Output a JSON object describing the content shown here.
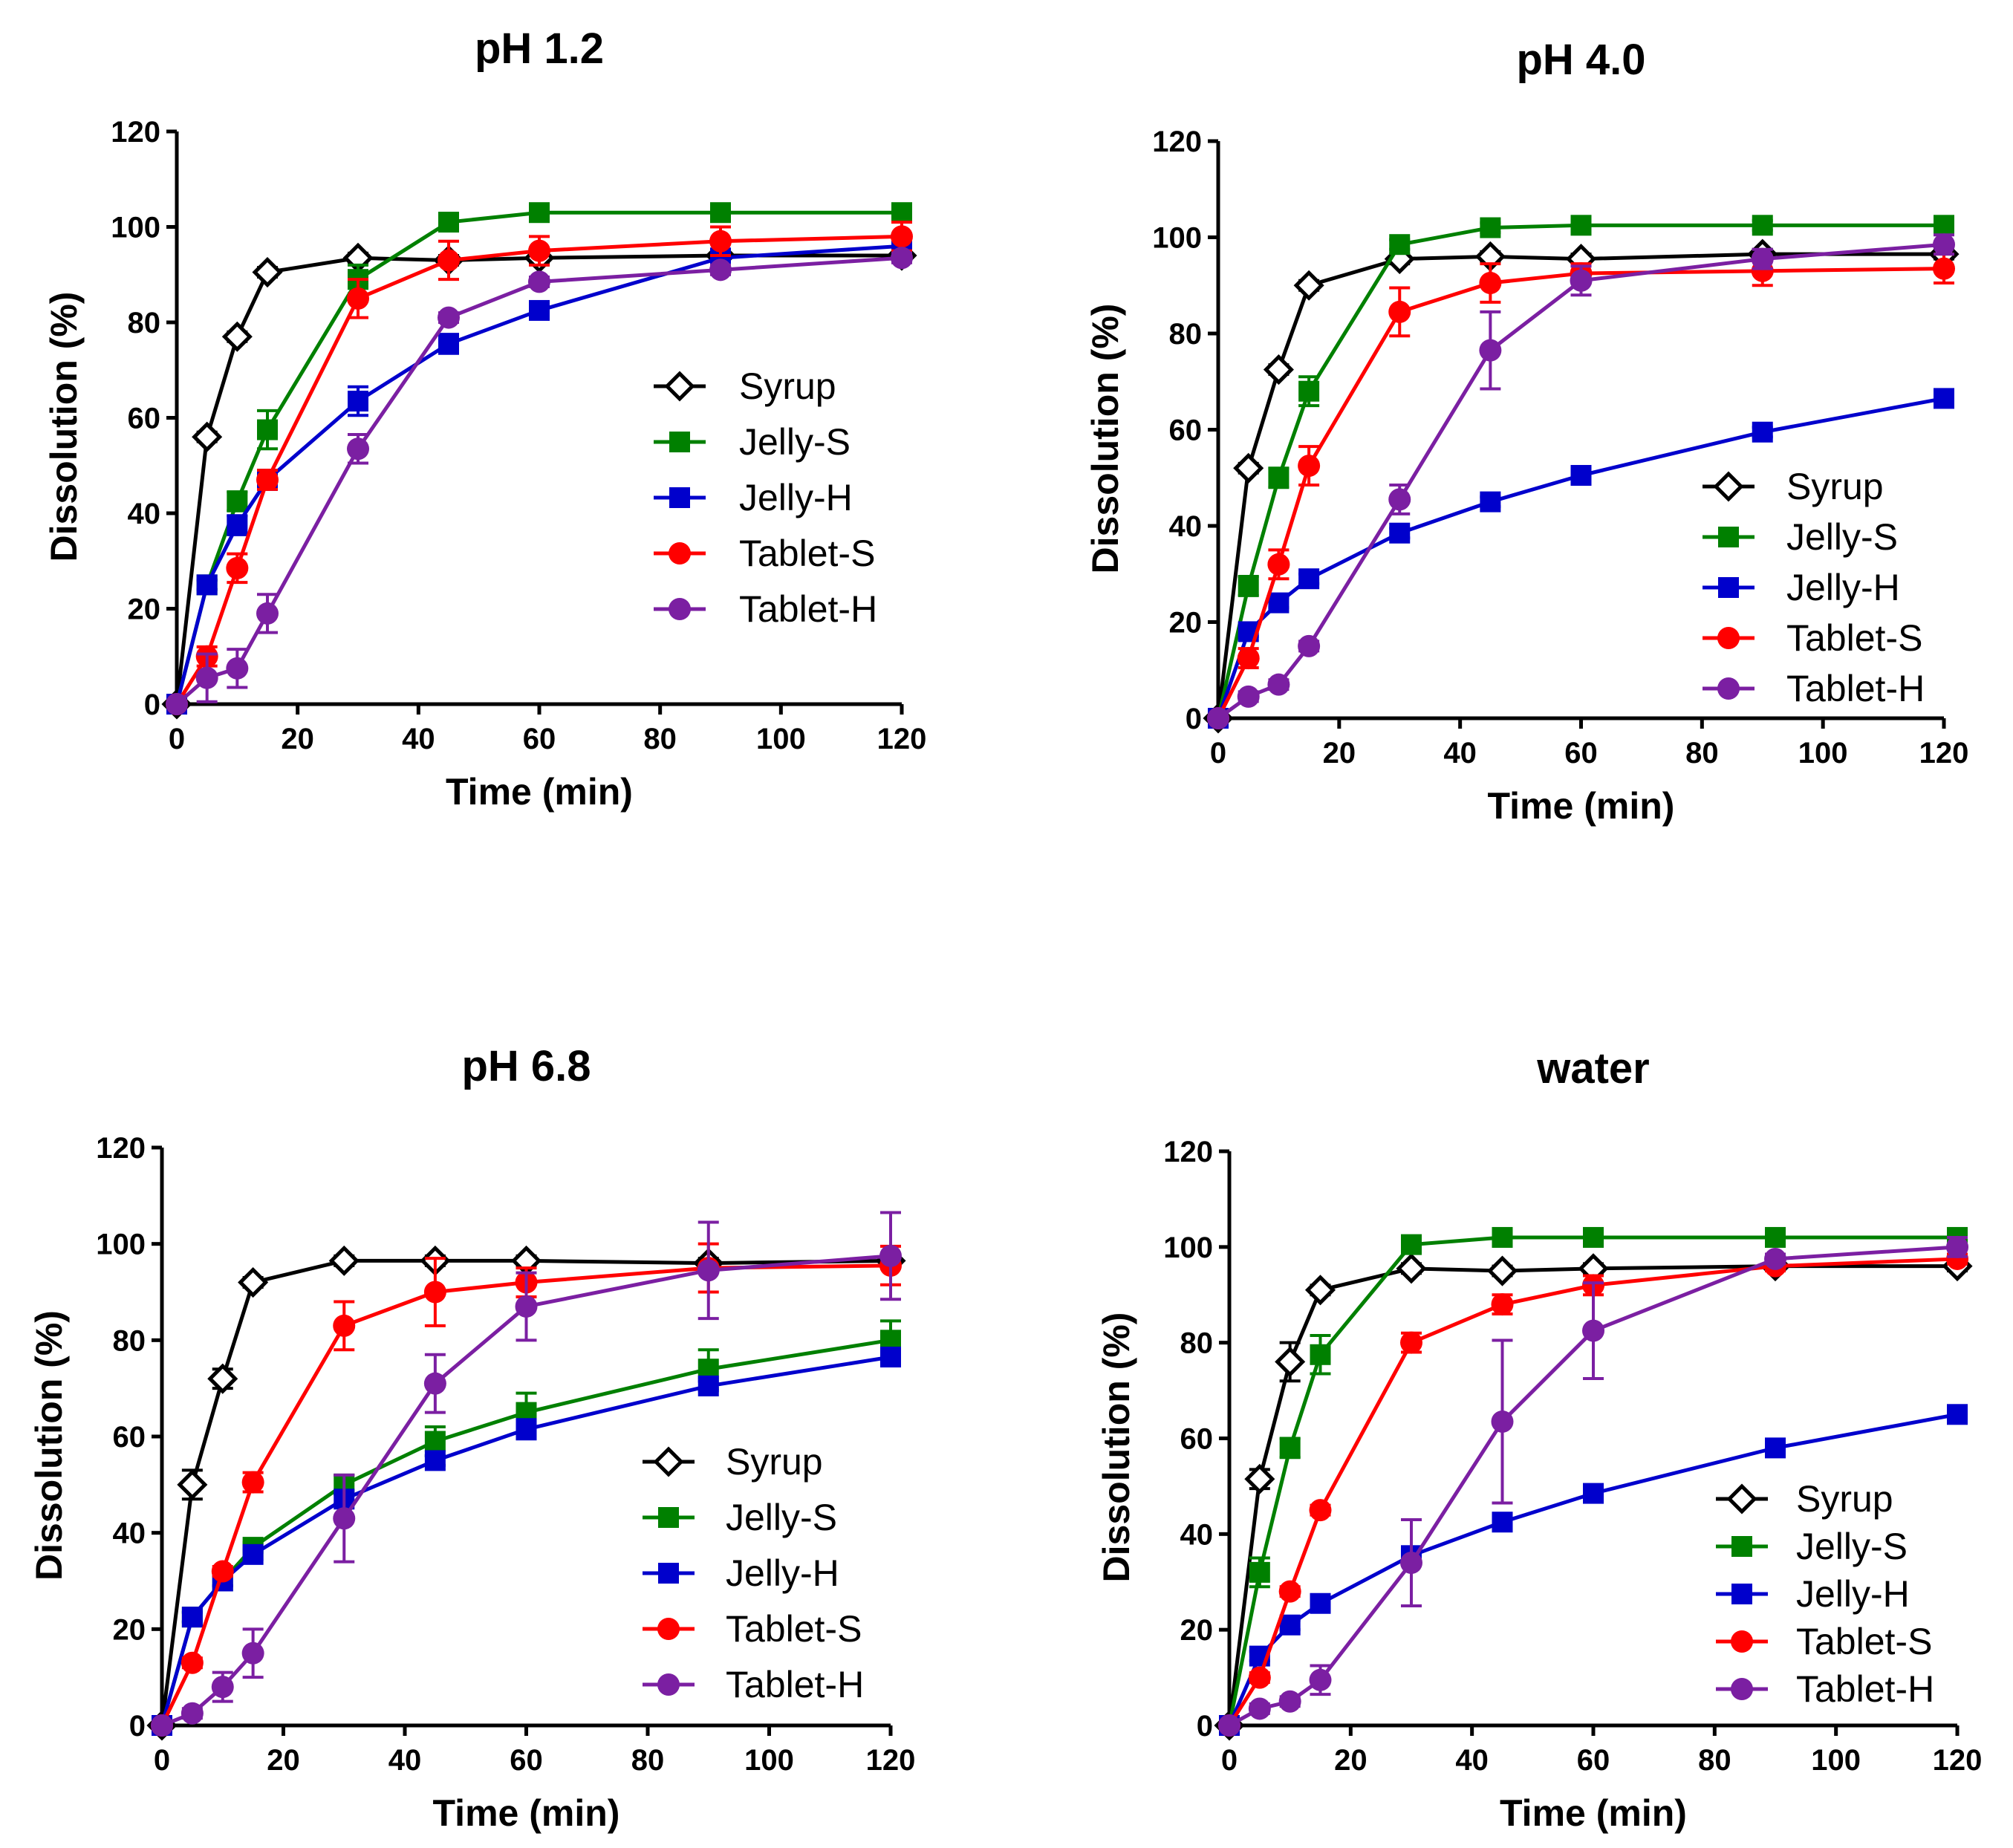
{
  "chart_data": [
    {
      "type": "line",
      "title": "pH 1.2",
      "xlabel": "Time (min)",
      "ylabel": "Dissolution (%)",
      "xlim": [
        0,
        120
      ],
      "ylim": [
        0,
        120
      ],
      "xticks": [
        "0",
        "20",
        "40",
        "60",
        "80",
        "100",
        "120"
      ],
      "yticks": [
        "0",
        "20",
        "40",
        "60",
        "80",
        "100",
        "120"
      ],
      "legend_position": "center-right",
      "x": [
        0,
        5,
        10,
        15,
        30,
        45,
        60,
        90,
        120
      ],
      "series": [
        {
          "name": "Syrup",
          "values": [
            0,
            56,
            77,
            90.5,
            93.5,
            93,
            93.5,
            94,
            94
          ],
          "err": [
            0,
            1,
            1,
            1,
            1,
            1,
            1,
            1,
            1
          ]
        },
        {
          "name": "Jelly-S",
          "values": [
            0,
            25,
            42.5,
            57.5,
            89,
            101,
            103,
            103,
            103
          ],
          "err": [
            0,
            1,
            2,
            4,
            3,
            1,
            1,
            1,
            1
          ]
        },
        {
          "name": "Jelly-H",
          "values": [
            0,
            25,
            37.5,
            47,
            63.5,
            75.5,
            82.5,
            93.5,
            96
          ],
          "err": [
            0,
            1,
            2,
            2,
            3,
            2,
            1,
            1,
            1
          ]
        },
        {
          "name": "Tablet-S",
          "values": [
            0,
            10,
            28.5,
            47,
            85,
            93,
            95,
            97,
            98
          ],
          "err": [
            0,
            2,
            3,
            2,
            4,
            4,
            3,
            3,
            3
          ]
        },
        {
          "name": "Tablet-H",
          "values": [
            0,
            5.5,
            7.5,
            19,
            53.5,
            81,
            88.5,
            91,
            93.5
          ],
          "err": [
            0,
            5,
            4,
            4,
            3,
            1,
            1,
            1,
            1
          ]
        }
      ]
    },
    {
      "type": "line",
      "title": "pH 4.0",
      "xlabel": "Time (min)",
      "ylabel": "Dissolution (%)",
      "xlim": [
        0,
        120
      ],
      "ylim": [
        0,
        120
      ],
      "xticks": [
        "0",
        "20",
        "40",
        "60",
        "80",
        "100",
        "120"
      ],
      "yticks": [
        "0",
        "20",
        "40",
        "60",
        "80",
        "100",
        "120"
      ],
      "legend_position": "lower-right",
      "x": [
        0,
        5,
        10,
        15,
        30,
        45,
        60,
        90,
        120
      ],
      "series": [
        {
          "name": "Syrup",
          "values": [
            0,
            52,
            72.5,
            90,
            95.5,
            96,
            95.5,
            96.5,
            96.5
          ],
          "err": [
            0,
            1,
            1,
            1,
            1,
            1,
            1,
            1,
            1
          ]
        },
        {
          "name": "Jelly-S",
          "values": [
            0,
            27.5,
            50,
            68,
            98.5,
            102,
            102.5,
            102.5,
            102.5
          ],
          "err": [
            0,
            2,
            2,
            3,
            1,
            1,
            1,
            1,
            1
          ]
        },
        {
          "name": "Jelly-H",
          "values": [
            0,
            18,
            24,
            29,
            38.5,
            45,
            50.5,
            59.5,
            66.5
          ],
          "err": [
            0,
            1,
            1,
            1,
            1,
            1,
            1,
            1,
            1
          ]
        },
        {
          "name": "Tablet-S",
          "values": [
            0,
            12.5,
            32,
            52.5,
            84.5,
            90.5,
            92.5,
            93,
            93.5
          ],
          "err": [
            0,
            2,
            3,
            4,
            5,
            4,
            2,
            3,
            3
          ]
        },
        {
          "name": "Tablet-H",
          "values": [
            0,
            4.5,
            7,
            15,
            45.5,
            76.5,
            91,
            95.5,
            98.5
          ],
          "err": [
            0,
            1,
            1,
            1,
            3,
            8,
            3,
            2,
            2
          ]
        }
      ]
    },
    {
      "type": "line",
      "title": "pH 6.8",
      "xlabel": "Time (min)",
      "ylabel": "Dissolution (%)",
      "xlim": [
        0,
        120
      ],
      "ylim": [
        0,
        120
      ],
      "xticks": [
        "0",
        "20",
        "40",
        "60",
        "80",
        "100",
        "120"
      ],
      "yticks": [
        "0",
        "20",
        "40",
        "60",
        "80",
        "100",
        "120"
      ],
      "legend_position": "lower-right",
      "x": [
        0,
        5,
        10,
        15,
        30,
        45,
        60,
        90,
        120
      ],
      "series": [
        {
          "name": "Syrup",
          "values": [
            0,
            50,
            72,
            92,
            96.5,
            96.5,
            96.5,
            96,
            96.5
          ],
          "err": [
            0,
            3,
            2,
            1,
            1,
            1,
            1,
            1,
            1
          ]
        },
        {
          "name": "Jelly-S",
          "values": [
            0,
            22.5,
            30,
            37,
            50,
            59,
            65,
            74,
            80
          ],
          "err": [
            0,
            1,
            1,
            1,
            2,
            3,
            4,
            4,
            4
          ]
        },
        {
          "name": "Jelly-H",
          "values": [
            0,
            22.5,
            30,
            35.5,
            47,
            55,
            61.5,
            70.5,
            76.5
          ],
          "err": [
            0,
            1,
            1,
            1,
            1,
            1,
            2,
            1,
            1
          ]
        },
        {
          "name": "Tablet-S",
          "values": [
            0,
            13,
            32,
            50.5,
            83,
            90,
            92,
            95,
            95.5
          ],
          "err": [
            0,
            1,
            1,
            2,
            5,
            7,
            3,
            5,
            4
          ]
        },
        {
          "name": "Tablet-H",
          "values": [
            0,
            2.5,
            8,
            15,
            43,
            71,
            87,
            94.5,
            97.5
          ],
          "err": [
            0,
            1,
            3,
            5,
            9,
            6,
            7,
            10,
            9
          ]
        }
      ]
    },
    {
      "type": "line",
      "title": "water",
      "xlabel": "Time (min)",
      "ylabel": "Dissolution (%)",
      "xlim": [
        0,
        120
      ],
      "ylim": [
        0,
        120
      ],
      "xticks": [
        "0",
        "20",
        "40",
        "60",
        "80",
        "100",
        "120"
      ],
      "yticks": [
        "0",
        "20",
        "40",
        "60",
        "80",
        "100",
        "120"
      ],
      "legend_position": "lower-right",
      "x": [
        0,
        5,
        10,
        15,
        30,
        45,
        60,
        90,
        120
      ],
      "series": [
        {
          "name": "Syrup",
          "values": [
            0,
            51.5,
            76,
            91,
            95.5,
            95,
            95.5,
            96,
            96
          ],
          "err": [
            0,
            2,
            4,
            1,
            1,
            1,
            1,
            1,
            1
          ]
        },
        {
          "name": "Jelly-S",
          "values": [
            0,
            32,
            58,
            77.5,
            100.5,
            102,
            102,
            102,
            102
          ],
          "err": [
            0,
            3,
            2,
            4,
            1,
            1,
            1,
            1,
            1
          ]
        },
        {
          "name": "Jelly-H",
          "values": [
            0,
            14.5,
            21,
            25.5,
            35.5,
            42.5,
            48.5,
            58,
            65
          ],
          "err": [
            0,
            1,
            1,
            1,
            1,
            1,
            1,
            1,
            1
          ]
        },
        {
          "name": "Tablet-S",
          "values": [
            0,
            10,
            28,
            45,
            80,
            88,
            92,
            96,
            97.5
          ],
          "err": [
            0,
            1,
            1,
            1,
            2,
            2,
            2,
            1,
            1
          ]
        },
        {
          "name": "Tablet-H",
          "values": [
            0,
            3.5,
            5,
            9.5,
            34,
            63.5,
            82.5,
            97.5,
            100
          ],
          "err": [
            0,
            1,
            1,
            3,
            9,
            17,
            10,
            1,
            2
          ]
        }
      ]
    }
  ],
  "styles": {
    "Syrup": {
      "color": "#000000",
      "marker": "diamond"
    },
    "Jelly-S": {
      "color": "#008000",
      "marker": "square"
    },
    "Jelly-H": {
      "color": "#0000cc",
      "marker": "square"
    },
    "Tablet-S": {
      "color": "#ff0000",
      "marker": "circle"
    },
    "Tablet-H": {
      "color": "#7b1fa2",
      "marker": "circle"
    }
  }
}
